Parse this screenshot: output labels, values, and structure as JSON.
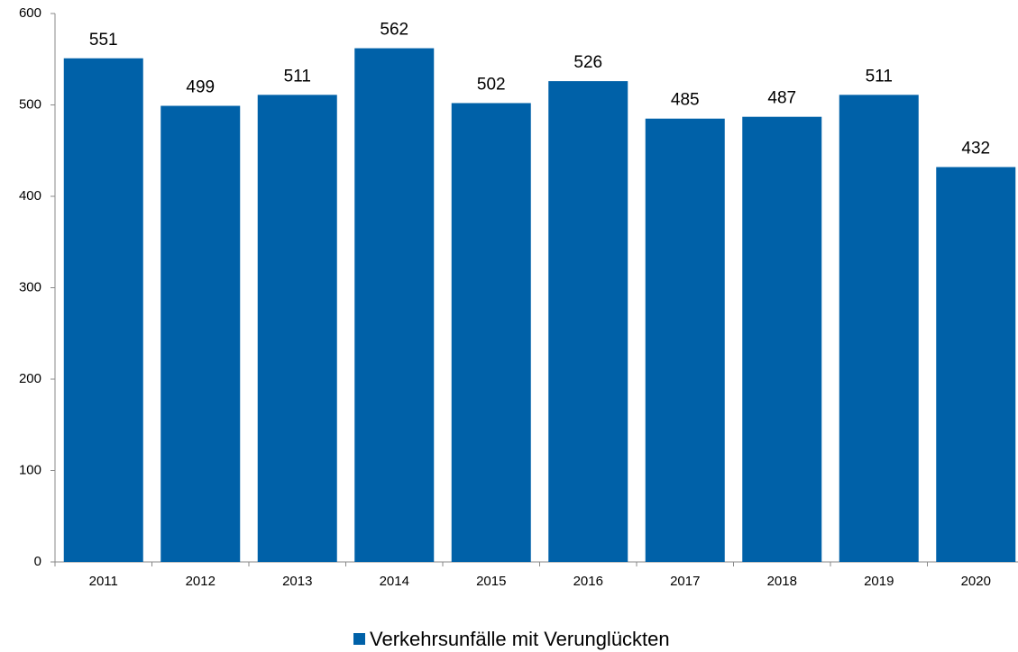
{
  "chart_data": {
    "type": "bar",
    "categories": [
      "2011",
      "2012",
      "2013",
      "2014",
      "2015",
      "2016",
      "2017",
      "2018",
      "2019",
      "2020"
    ],
    "series": [
      {
        "name": "Verkehrsunfälle mit Verunglückten",
        "color": "#0061a8",
        "values": [
          551,
          499,
          511,
          562,
          502,
          526,
          485,
          487,
          511,
          432
        ]
      }
    ],
    "ylim": [
      0,
      600
    ],
    "yticks": [
      0,
      100,
      200,
      300,
      400,
      500,
      600
    ],
    "grid": false,
    "legend": "bottom"
  }
}
